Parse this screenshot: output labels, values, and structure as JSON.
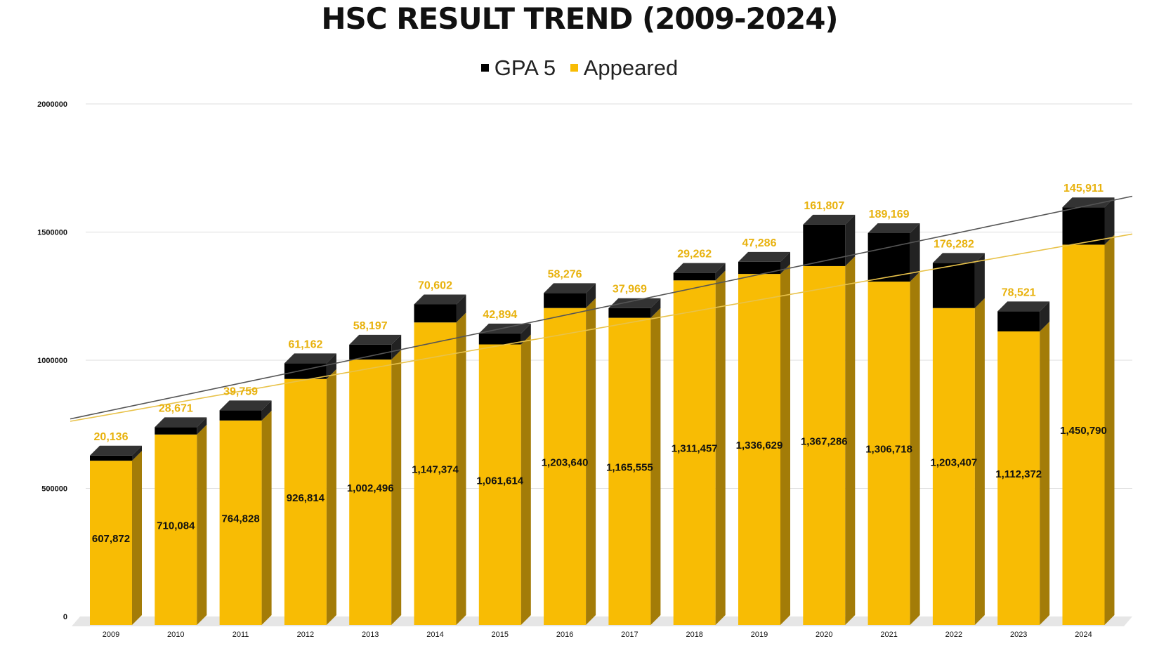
{
  "chart_data": {
    "type": "bar",
    "stacked": true,
    "title": "HSC RESULT TREND (2009-2024)",
    "legend": {
      "placement": "top-center",
      "entries": [
        "GPA 5",
        "Appeared"
      ]
    },
    "categories": [
      "2009",
      "2010",
      "2011",
      "2012",
      "2013",
      "2014",
      "2015",
      "2016",
      "2017",
      "2018",
      "2019",
      "2020",
      "2021",
      "2022",
      "2023",
      "2024"
    ],
    "series": [
      {
        "name": "Appeared",
        "color": "#F8BC04",
        "side_color": "#A37C08",
        "values": [
          607872,
          710084,
          764828,
          926814,
          1002496,
          1147374,
          1061614,
          1203640,
          1165555,
          1311457,
          1336629,
          1367286,
          1306718,
          1203407,
          1112372,
          1450790
        ],
        "labels": [
          "607,872",
          "710,084",
          "764,828",
          "926,814",
          "1,002,496",
          "1,147,374",
          "1,061,614",
          "1,203,640",
          "1,165,555",
          "1,311,457",
          "1,336,629",
          "1,367,286",
          "1,306,718",
          "1,203,407",
          "1,112,372",
          "1,450,790"
        ]
      },
      {
        "name": "GPA 5",
        "color": "#000000",
        "side_color": "#222222",
        "top_color": "#333333",
        "values": [
          20136,
          28671,
          39759,
          61162,
          58197,
          70602,
          42894,
          58276,
          37969,
          29262,
          47286,
          161807,
          189169,
          176282,
          78521,
          145911
        ],
        "labels": [
          "20,136",
          "28,671",
          "39,759",
          "61,162",
          "58,197",
          "70,602",
          "42,894",
          "58,276",
          "37,969",
          "29,262",
          "47,286",
          "161,807",
          "189,169",
          "176,282",
          "78,521",
          "145,911"
        ]
      }
    ],
    "y_axis": {
      "min": 0,
      "max": 2000000,
      "ticks": [
        0,
        500000,
        1000000,
        1500000,
        2000000
      ],
      "tick_labels": [
        "0",
        "500000",
        "1000000",
        "1500000",
        "2000000"
      ]
    },
    "grid": true,
    "trendlines": [
      {
        "series": "Total",
        "color": "#555555"
      },
      {
        "series": "Appeared",
        "color": "#E8C24A"
      }
    ]
  }
}
